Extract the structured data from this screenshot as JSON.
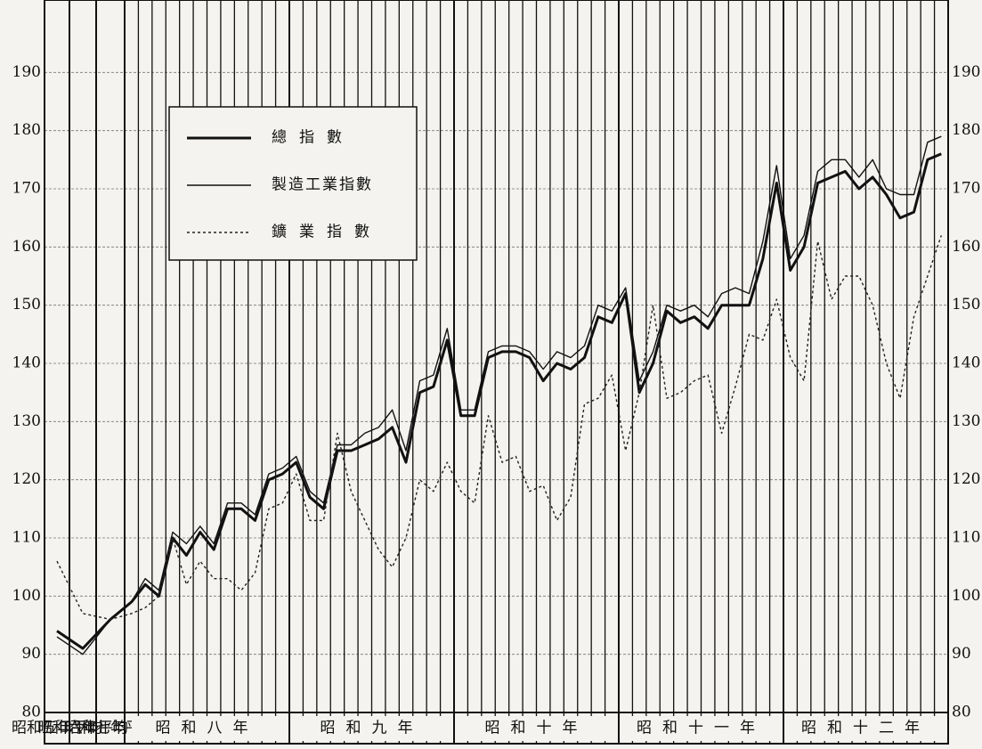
{
  "chart_data": {
    "type": "line",
    "categories": [
      "昭和五年平均",
      "昭和六年平均",
      "昭和七年平均",
      null,
      null,
      null,
      null,
      null,
      null,
      null,
      null,
      null,
      null,
      null,
      null,
      null,
      null,
      null,
      null,
      null,
      null,
      null,
      null,
      null,
      null,
      null,
      null,
      null,
      null,
      null,
      null,
      null,
      null,
      null,
      null,
      null,
      null,
      null,
      null,
      null,
      null,
      null,
      null,
      null,
      null,
      null,
      null,
      null,
      null,
      null,
      null,
      null,
      null,
      null,
      null,
      null,
      null,
      null,
      null,
      null,
      null,
      null,
      null
    ],
    "year_labels": [
      "昭和八年",
      "昭和九年",
      "昭和十年",
      "昭和十一年",
      "昭和十二年"
    ],
    "series": [
      {
        "name": "總指數",
        "color": "#111111",
        "line_style": "bold",
        "values": [
          94,
          91,
          96,
          99,
          102,
          100,
          110,
          107,
          111,
          108,
          115,
          115,
          113,
          120,
          121,
          123,
          117,
          115,
          125,
          125,
          126,
          127,
          129,
          123,
          135,
          136,
          144,
          131,
          131,
          141,
          142,
          142,
          141,
          137,
          140,
          139,
          141,
          148,
          147,
          152,
          135,
          140,
          149,
          147,
          148,
          146,
          150,
          150,
          150,
          158,
          171,
          156,
          160,
          171,
          172,
          173,
          170,
          172,
          169,
          165,
          166,
          175,
          176
        ]
      },
      {
        "name": "製造工業指數",
        "color": "#111111",
        "line_style": "solid",
        "values": [
          93,
          90,
          96,
          99,
          103,
          101,
          111,
          109,
          112,
          109,
          116,
          116,
          114,
          121,
          122,
          124,
          118,
          116,
          126,
          126,
          128,
          129,
          132,
          125,
          137,
          138,
          146,
          132,
          132,
          142,
          143,
          143,
          142,
          139,
          142,
          141,
          143,
          150,
          149,
          153,
          137,
          142,
          150,
          149,
          150,
          148,
          152,
          153,
          152,
          161,
          174,
          158,
          162,
          173,
          175,
          175,
          172,
          175,
          170,
          169,
          169,
          178,
          179
        ]
      },
      {
        "name": "鑛業指數",
        "color": "#222222",
        "line_style": "dotted",
        "values": [
          106,
          97,
          96,
          97,
          98,
          100,
          110,
          102,
          106,
          103,
          103,
          101,
          104,
          115,
          116,
          121,
          113,
          113,
          128,
          118,
          113,
          108,
          105,
          110,
          120,
          118,
          123,
          118,
          116,
          131,
          123,
          124,
          118,
          119,
          113,
          117,
          133,
          134,
          138,
          125,
          135,
          150,
          134,
          135,
          137,
          138,
          128,
          136,
          145,
          144,
          151,
          141,
          137,
          161,
          151,
          155,
          155,
          150,
          140,
          134,
          148,
          155,
          162
        ]
      }
    ],
    "ylim": [
      80,
      200
    ],
    "yticks": [
      80,
      90,
      100,
      110,
      120,
      130,
      140,
      150,
      160,
      170,
      180,
      190
    ],
    "grid": true
  }
}
